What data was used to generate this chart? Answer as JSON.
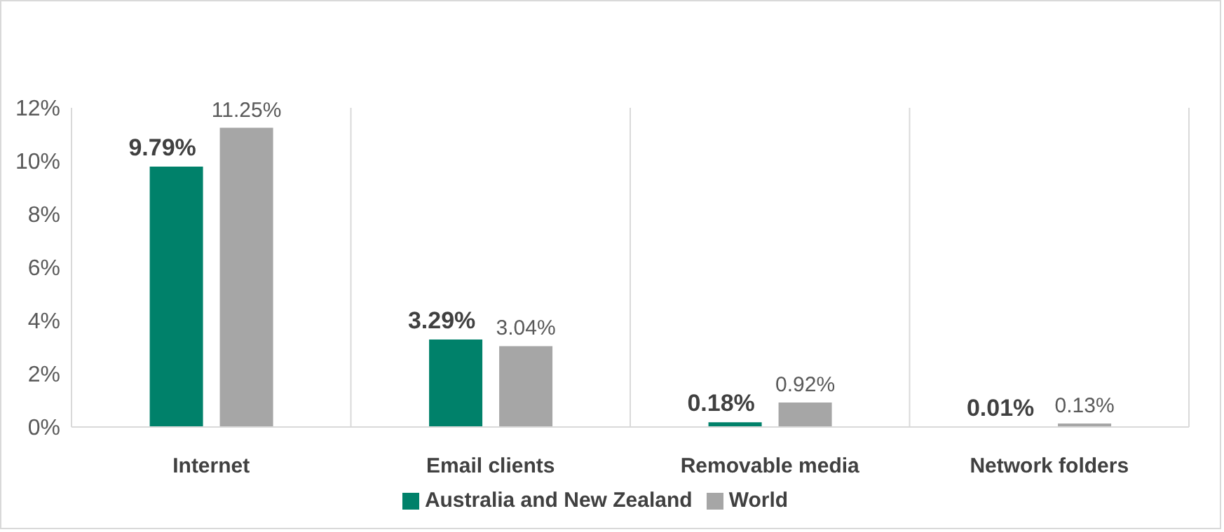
{
  "chart_data": {
    "type": "bar",
    "categories": [
      "Internet",
      "Email clients",
      "Removable media",
      "Network folders"
    ],
    "series": [
      {
        "name": "Australia and New Zealand",
        "color": "#00816a",
        "values": [
          9.79,
          3.29,
          0.18,
          0.01
        ],
        "value_labels": [
          "9.79%",
          "3.29%",
          "0.18%",
          "0.01%"
        ]
      },
      {
        "name": "World",
        "color": "#a6a6a6",
        "values": [
          11.25,
          3.04,
          0.92,
          0.13
        ],
        "value_labels": [
          "11.25%",
          "3.04%",
          "0.92%",
          "0.13%"
        ]
      }
    ],
    "ylim": [
      0,
      12
    ],
    "yticks": [
      {
        "value": 0,
        "label": "0%"
      },
      {
        "value": 2,
        "label": "2%"
      },
      {
        "value": 4,
        "label": "4%"
      },
      {
        "value": 6,
        "label": "6%"
      },
      {
        "value": 8,
        "label": "8%"
      },
      {
        "value": 10,
        "label": "10%"
      },
      {
        "value": 12,
        "label": "12%"
      }
    ],
    "grid": "x",
    "legend": "bottom"
  }
}
